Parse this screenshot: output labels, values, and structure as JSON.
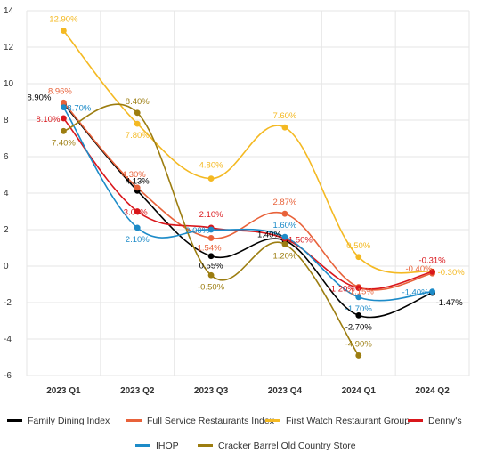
{
  "chart_data": {
    "type": "line",
    "categories": [
      "2023 Q1",
      "2023 Q2",
      "2023 Q3",
      "2023 Q4",
      "2024 Q1",
      "2024 Q2"
    ],
    "ylim": [
      -6,
      14
    ],
    "yticks": [
      "14",
      "12",
      "10",
      "8",
      "6",
      "4",
      "2",
      "0",
      "-2",
      "-4",
      "-6"
    ],
    "grid": true,
    "legend_position": "bottom",
    "series": [
      {
        "name": "Family Dining Index",
        "color": "#000000",
        "values": [
          8.9,
          4.13,
          0.55,
          1.4,
          -2.7,
          -1.47
        ],
        "labels": [
          "8.90%",
          "4.13%",
          "0.55%",
          "1.40%",
          "-2.70%",
          "-1.47%"
        ]
      },
      {
        "name": "Full Service Restaurants Index",
        "color": "#e8623a",
        "values": [
          8.96,
          4.3,
          1.54,
          2.87,
          -1.15,
          -0.4
        ],
        "labels": [
          "8.96%",
          "4.30%",
          "1.54%",
          "2.87%",
          "-1.15%",
          "-0.40%"
        ]
      },
      {
        "name": "First Watch Restaurant Group",
        "color": "#f4b922",
        "values": [
          12.9,
          7.8,
          4.8,
          7.6,
          0.5,
          -0.3
        ],
        "labels": [
          "12.90%",
          "7.80%",
          "4.80%",
          "7.60%",
          "0.50%",
          "-0.30%"
        ]
      },
      {
        "name": "Denny's",
        "color": "#d9161b",
        "values": [
          8.1,
          3.0,
          2.1,
          1.5,
          -1.2,
          -0.31
        ],
        "labels": [
          "8.10%",
          "3.00%",
          "2.10%",
          "1.50%",
          "-1.20%",
          "-0.31%"
        ]
      },
      {
        "name": "IHOP",
        "color": "#1d8bc8",
        "values": [
          8.7,
          2.1,
          2.0,
          1.6,
          -1.7,
          -1.4
        ],
        "labels": [
          "8.70%",
          "2.10%",
          "2.00%",
          "1.60%",
          "-1.70%",
          "-1.40%"
        ]
      },
      {
        "name": "Cracker Barrel Old Country Store",
        "color": "#9c7d10",
        "values": [
          7.4,
          8.4,
          -0.5,
          1.2,
          -4.9,
          null
        ],
        "labels": [
          "7.40%",
          "8.40%",
          "-0.50%",
          "1.20%",
          "-4.90%",
          null
        ]
      }
    ]
  }
}
